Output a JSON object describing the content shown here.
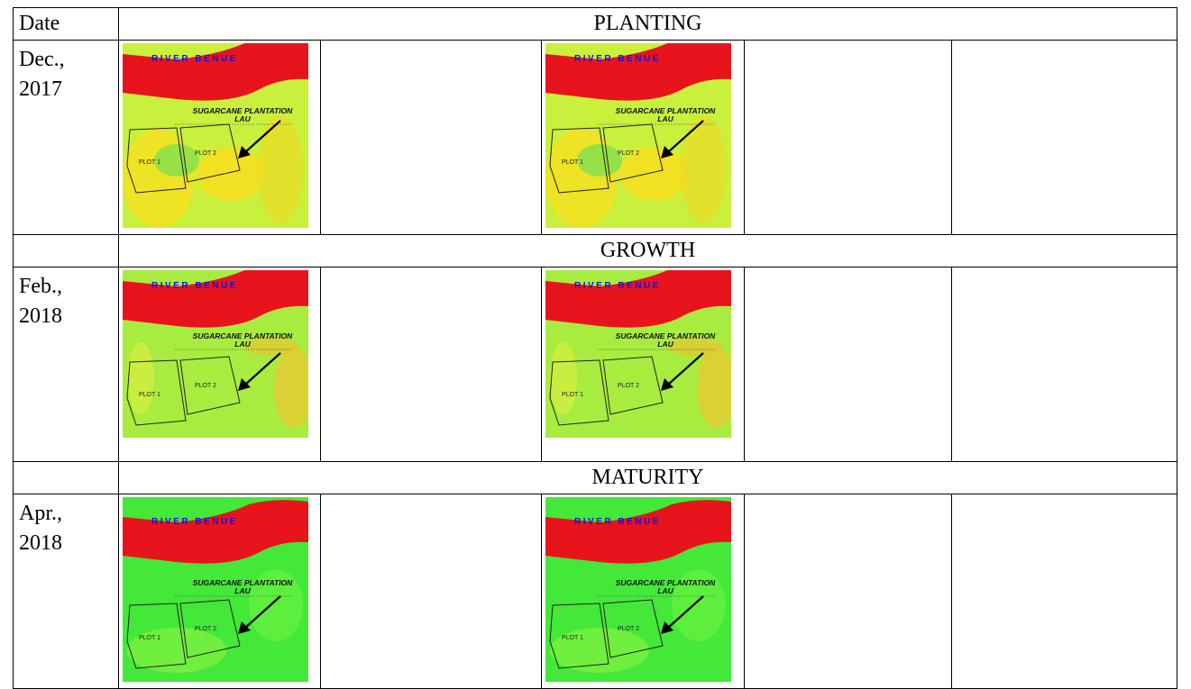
{
  "table": {
    "date_header": "Date",
    "sections": [
      {
        "stage": "PLANTING",
        "date": "Dec.,\n2017",
        "maps": [
          {
            "river_label": "RIVER   BENUE",
            "plantation_line1": "SUGARCANE PLANTATION",
            "plantation_line2": "LAU",
            "plot1": "PLOT 1",
            "plot2": "PLOT 2"
          },
          {
            "river_label": "RIVER   BENUE",
            "plantation_line1": "SUGARCANE PLANTATION",
            "plantation_line2": "LAU",
            "plot1": "PLOT 1",
            "plot2": "PLOT 2"
          }
        ]
      },
      {
        "stage": "GROWTH",
        "date": "Feb.,\n2018",
        "maps": [
          {
            "river_label": "RIVER   BENUE",
            "plantation_line1": "SUGARCANE PLANTATION",
            "plantation_line2": "LAU",
            "plot1": "PLOT 1",
            "plot2": "PLOT 2"
          },
          {
            "river_label": "RIVER   BENUE",
            "plantation_line1": "SUGARCANE PLANTATION",
            "plantation_line2": "LAU",
            "plot1": "PLOT 1",
            "plot2": "PLOT 2"
          }
        ]
      },
      {
        "stage": "MATURITY",
        "date": "Apr.,\n2018",
        "maps": [
          {
            "river_label": "RIVER   BENUE",
            "plantation_line1": "SUGARCANE PLANTATION",
            "plantation_line2": "LAU",
            "plot1": "PLOT 1",
            "plot2": "PLOT 2"
          },
          {
            "river_label": "RIVER   BENUE",
            "plantation_line1": "SUGARCANE PLANTATION",
            "plantation_line2": "LAU",
            "plot1": "PLOT 1",
            "plot2": "PLOT 2"
          }
        ]
      }
    ]
  },
  "colors": {
    "river": "#e8141c",
    "label_blue": "#1010e0",
    "planting_field": "#c8f03c",
    "planting_patch": "#f4e020",
    "growth_field": "#a8ec40",
    "maturity_field": "#44e838",
    "maturity_patch": "#7cf040",
    "border": "#000000"
  }
}
